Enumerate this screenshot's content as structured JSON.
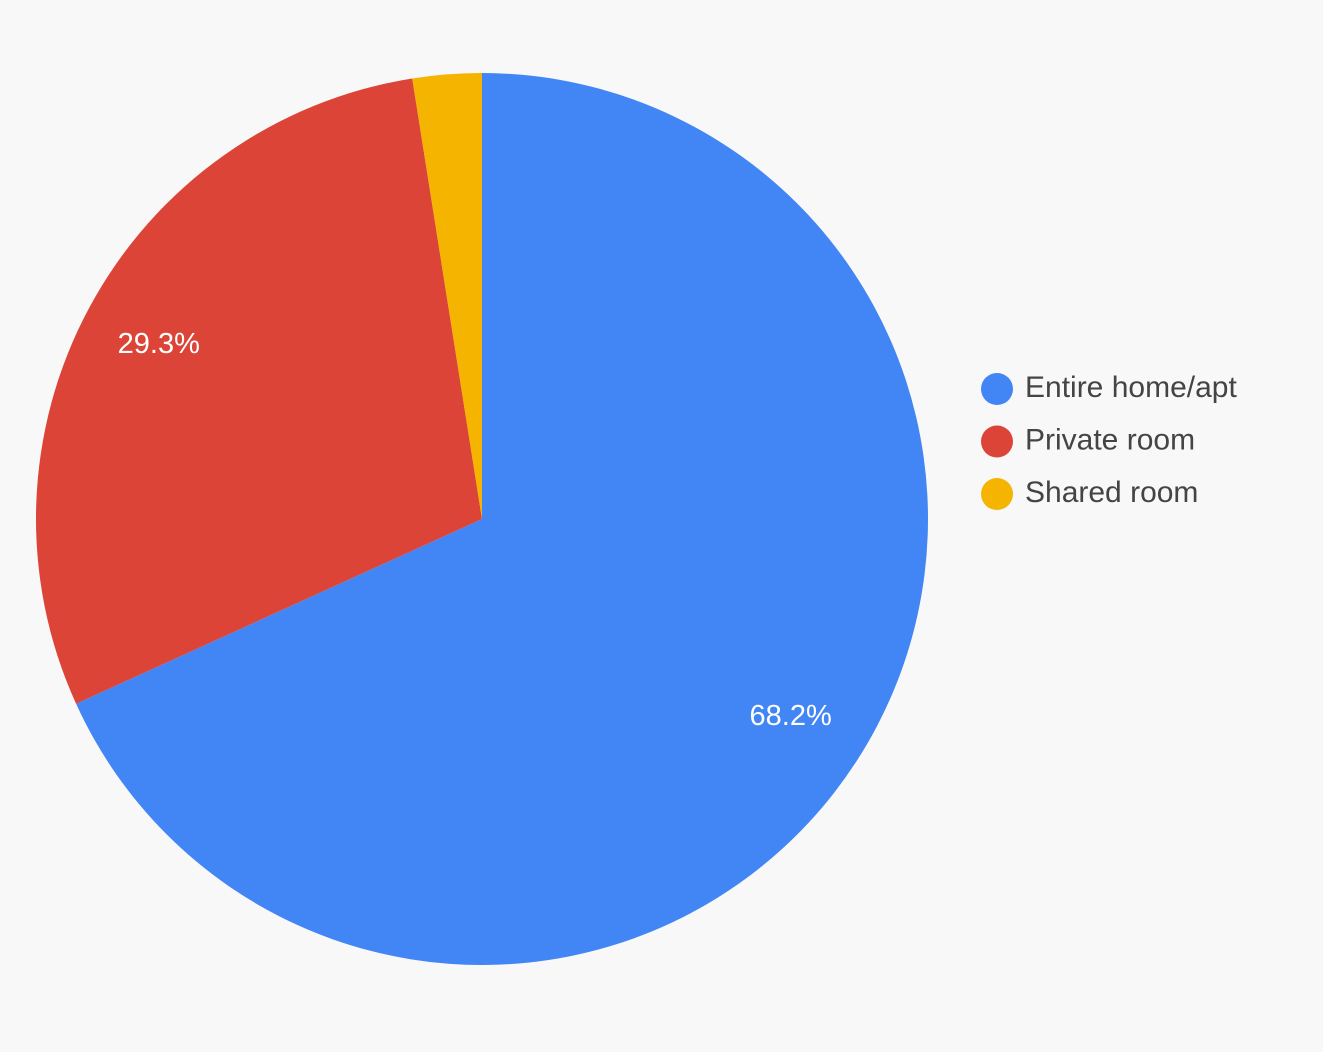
{
  "chart_data": {
    "type": "pie",
    "categories": [
      "Entire home/apt",
      "Private room",
      "Shared room"
    ],
    "values": [
      68.2,
      29.3,
      2.5
    ],
    "value_labels": [
      "68.2%",
      "29.3%",
      null
    ],
    "colors": [
      "#4285f4",
      "#db4437",
      "#f4b400"
    ],
    "legend": "right"
  }
}
